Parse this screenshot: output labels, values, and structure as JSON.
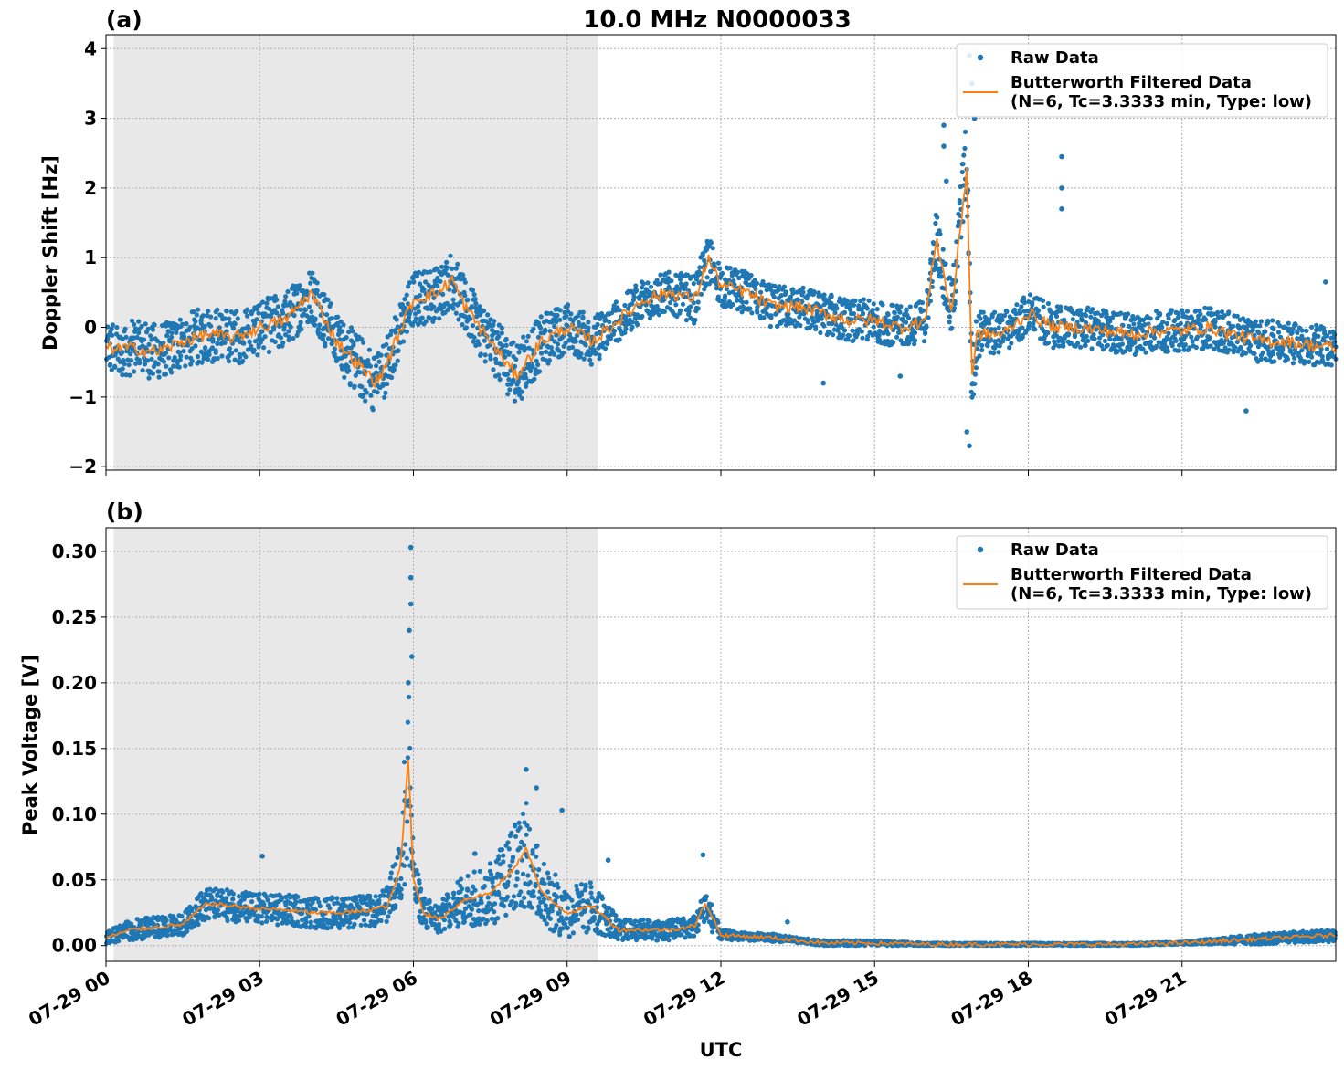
{
  "title": "10.0 MHz N0000033",
  "colors": {
    "raw": "#1f77b4",
    "filtered": "#ff7f0e",
    "shade": "#e8e8e8"
  },
  "chart_data": [
    {
      "panel_label": "(a)",
      "type": "scatter",
      "ylabel": "Doppler Shift [Hz]",
      "xlabel": "",
      "xlim": [
        0,
        24
      ],
      "ylim": [
        -2.05,
        4.2
      ],
      "yticks": [
        -2,
        -1,
        0,
        1,
        2,
        3,
        4
      ],
      "ytick_labels": [
        "−2",
        "−1",
        "0",
        "1",
        "2",
        "3",
        "4"
      ],
      "grid": true,
      "legend": "top-right",
      "shaded_region_hours": [
        0.15,
        9.6
      ],
      "series": [
        {
          "name": "Raw Data",
          "kind": "scatter",
          "x": [
            0.0,
            0.5,
            1.0,
            1.5,
            2.0,
            2.5,
            3.0,
            3.5,
            4.0,
            4.5,
            5.0,
            5.3,
            5.6,
            6.0,
            6.5,
            6.75,
            7.0,
            7.5,
            8.0,
            8.5,
            9.0,
            9.5,
            10.0,
            10.5,
            11.0,
            11.5,
            11.75,
            12.0,
            12.5,
            13.0,
            13.5,
            14.0,
            14.5,
            15.0,
            15.5,
            16.0,
            16.2,
            16.5,
            16.8,
            16.9,
            17.0,
            17.5,
            18.0,
            18.5,
            19.0,
            19.5,
            20.0,
            20.5,
            21.0,
            21.5,
            22.0,
            22.5,
            23.0,
            23.5,
            24.0
          ],
          "y": [
            -0.3,
            -0.3,
            -0.35,
            -0.2,
            -0.1,
            -0.15,
            0.0,
            0.1,
            0.5,
            -0.2,
            -0.6,
            -0.8,
            -0.3,
            0.4,
            0.5,
            0.7,
            0.3,
            -0.2,
            -0.7,
            -0.2,
            0.0,
            -0.2,
            0.1,
            0.4,
            0.5,
            0.4,
            1.0,
            0.6,
            0.5,
            0.3,
            0.3,
            0.2,
            0.1,
            0.1,
            0.0,
            0.1,
            1.3,
            0.2,
            2.5,
            -0.9,
            -0.1,
            -0.1,
            0.2,
            0.0,
            0.0,
            -0.05,
            -0.1,
            -0.05,
            -0.05,
            0.0,
            -0.1,
            -0.2,
            -0.2,
            -0.25,
            -0.3
          ],
          "spread": [
            0.4,
            0.4,
            0.4,
            0.4,
            0.4,
            0.4,
            0.4,
            0.4,
            0.4,
            0.4,
            0.45,
            0.45,
            0.4,
            0.4,
            0.4,
            0.4,
            0.4,
            0.4,
            0.45,
            0.4,
            0.35,
            0.35,
            0.3,
            0.3,
            0.3,
            0.35,
            0.35,
            0.3,
            0.3,
            0.3,
            0.3,
            0.3,
            0.3,
            0.3,
            0.3,
            0.3,
            0.4,
            0.4,
            0.6,
            0.5,
            0.35,
            0.3,
            0.3,
            0.3,
            0.3,
            0.3,
            0.3,
            0.3,
            0.3,
            0.3,
            0.3,
            0.3,
            0.3,
            0.3,
            0.3
          ],
          "outliers": [
            [
              16.35,
              2.9
            ],
            [
              16.35,
              2.6
            ],
            [
              16.4,
              2.1
            ],
            [
              16.85,
              3.9
            ],
            [
              16.9,
              3.5
            ],
            [
              16.95,
              3.0
            ],
            [
              16.8,
              -1.5
            ],
            [
              16.85,
              -1.7
            ],
            [
              18.65,
              2.45
            ],
            [
              18.65,
              2.0
            ],
            [
              18.65,
              1.7
            ],
            [
              22.25,
              -1.2
            ],
            [
              23.8,
              0.65
            ],
            [
              14.0,
              -0.8
            ],
            [
              15.5,
              -0.7
            ]
          ]
        },
        {
          "name": "Butterworth Filtered Data\n(N=6, Tc=3.3333 min, Type: low)",
          "kind": "line",
          "x": [
            0.0,
            0.5,
            1.0,
            1.5,
            2.0,
            2.5,
            3.0,
            3.5,
            4.0,
            4.5,
            5.0,
            5.3,
            5.6,
            6.0,
            6.5,
            6.75,
            7.0,
            7.5,
            8.0,
            8.5,
            9.0,
            9.5,
            10.0,
            10.5,
            11.0,
            11.5,
            11.75,
            12.0,
            12.5,
            13.0,
            13.5,
            14.0,
            14.5,
            15.0,
            15.5,
            16.0,
            16.2,
            16.5,
            16.8,
            16.9,
            17.0,
            17.5,
            18.0,
            18.5,
            19.0,
            19.5,
            20.0,
            20.5,
            21.0,
            21.5,
            22.0,
            22.5,
            23.0,
            23.5,
            24.0
          ],
          "y": [
            -0.3,
            -0.3,
            -0.35,
            -0.2,
            -0.1,
            -0.15,
            0.0,
            0.1,
            0.5,
            -0.2,
            -0.6,
            -0.8,
            -0.3,
            0.4,
            0.5,
            0.7,
            0.3,
            -0.2,
            -0.7,
            -0.2,
            0.0,
            -0.2,
            0.1,
            0.4,
            0.5,
            0.4,
            1.0,
            0.6,
            0.5,
            0.3,
            0.3,
            0.2,
            0.1,
            0.1,
            0.0,
            0.1,
            1.3,
            0.2,
            2.3,
            -0.7,
            -0.1,
            -0.1,
            0.2,
            0.0,
            0.0,
            -0.05,
            -0.1,
            -0.05,
            -0.05,
            0.0,
            -0.1,
            -0.2,
            -0.2,
            -0.25,
            -0.3
          ]
        }
      ]
    },
    {
      "panel_label": "(b)",
      "type": "scatter",
      "ylabel": "Peak Voltage [V]",
      "xlabel": "UTC",
      "xlim": [
        0,
        24
      ],
      "ylim": [
        -0.012,
        0.318
      ],
      "yticks": [
        0.0,
        0.05,
        0.1,
        0.15,
        0.2,
        0.25,
        0.3
      ],
      "ytick_labels": [
        "0.00",
        "0.05",
        "0.10",
        "0.15",
        "0.20",
        "0.25",
        "0.30"
      ],
      "xticks": [
        0,
        3,
        6,
        9,
        12,
        15,
        18,
        21
      ],
      "xtick_labels": [
        "07-29 00",
        "07-29 03",
        "07-29 06",
        "07-29 09",
        "07-29 12",
        "07-29 15",
        "07-29 18",
        "07-29 21"
      ],
      "grid": true,
      "legend": "top-right",
      "shaded_region_hours": [
        0.15,
        9.6
      ],
      "series": [
        {
          "name": "Raw Data",
          "kind": "scatter",
          "x": [
            0.0,
            0.5,
            1.0,
            1.5,
            1.9,
            2.0,
            2.5,
            3.0,
            3.5,
            4.0,
            4.5,
            5.0,
            5.5,
            5.75,
            5.9,
            6.0,
            6.2,
            6.5,
            7.0,
            7.5,
            8.0,
            8.2,
            8.5,
            9.0,
            9.5,
            10.0,
            10.5,
            11.0,
            11.5,
            11.7,
            12.0,
            12.5,
            13.0,
            13.5,
            14.0,
            15.0,
            16.0,
            17.0,
            18.0,
            19.0,
            20.0,
            21.0,
            22.0,
            22.5,
            23.0,
            24.0
          ],
          "y": [
            0.006,
            0.012,
            0.014,
            0.016,
            0.03,
            0.032,
            0.03,
            0.028,
            0.027,
            0.025,
            0.025,
            0.026,
            0.03,
            0.06,
            0.14,
            0.05,
            0.025,
            0.02,
            0.035,
            0.04,
            0.06,
            0.07,
            0.04,
            0.025,
            0.03,
            0.012,
            0.012,
            0.012,
            0.015,
            0.03,
            0.008,
            0.007,
            0.006,
            0.004,
            0.002,
            0.002,
            0.001,
            0.001,
            0.001,
            0.001,
            0.001,
            0.002,
            0.004,
            0.005,
            0.006,
            0.008
          ],
          "spread": [
            0.005,
            0.008,
            0.008,
            0.008,
            0.012,
            0.012,
            0.012,
            0.012,
            0.012,
            0.012,
            0.012,
            0.012,
            0.015,
            0.03,
            0.08,
            0.02,
            0.012,
            0.012,
            0.02,
            0.025,
            0.035,
            0.04,
            0.025,
            0.02,
            0.02,
            0.008,
            0.008,
            0.008,
            0.008,
            0.015,
            0.004,
            0.003,
            0.003,
            0.002,
            0.002,
            0.002,
            0.001,
            0.001,
            0.001,
            0.001,
            0.001,
            0.001,
            0.003,
            0.004,
            0.004,
            0.005
          ],
          "outliers": [
            [
              5.95,
              0.303
            ],
            [
              5.95,
              0.28
            ],
            [
              5.95,
              0.26
            ],
            [
              5.92,
              0.24
            ],
            [
              5.97,
              0.22
            ],
            [
              5.9,
              0.2
            ],
            [
              8.2,
              0.134
            ],
            [
              8.4,
              0.12
            ],
            [
              8.9,
              0.103
            ],
            [
              3.05,
              0.068
            ],
            [
              11.65,
              0.069
            ],
            [
              7.2,
              0.07
            ],
            [
              13.3,
              0.018
            ],
            [
              9.8,
              0.065
            ]
          ]
        },
        {
          "name": "Butterworth Filtered Data\n(N=6, Tc=3.3333 min, Type: low)",
          "kind": "line",
          "x": [
            0.0,
            0.5,
            1.0,
            1.5,
            1.9,
            2.0,
            2.5,
            3.0,
            3.5,
            4.0,
            4.5,
            5.0,
            5.5,
            5.75,
            5.9,
            6.0,
            6.2,
            6.5,
            7.0,
            7.5,
            8.0,
            8.2,
            8.5,
            9.0,
            9.5,
            10.0,
            10.5,
            11.0,
            11.5,
            11.7,
            12.0,
            12.5,
            13.0,
            13.5,
            14.0,
            15.0,
            16.0,
            17.0,
            18.0,
            19.0,
            20.0,
            21.0,
            22.0,
            22.5,
            23.0,
            24.0
          ],
          "y": [
            0.006,
            0.012,
            0.014,
            0.016,
            0.03,
            0.032,
            0.03,
            0.028,
            0.027,
            0.025,
            0.025,
            0.026,
            0.03,
            0.06,
            0.143,
            0.05,
            0.025,
            0.02,
            0.035,
            0.04,
            0.06,
            0.075,
            0.04,
            0.025,
            0.03,
            0.012,
            0.012,
            0.012,
            0.015,
            0.033,
            0.008,
            0.007,
            0.006,
            0.004,
            0.002,
            0.002,
            0.001,
            0.001,
            0.001,
            0.001,
            0.001,
            0.002,
            0.004,
            0.005,
            0.006,
            0.008
          ]
        }
      ]
    }
  ]
}
